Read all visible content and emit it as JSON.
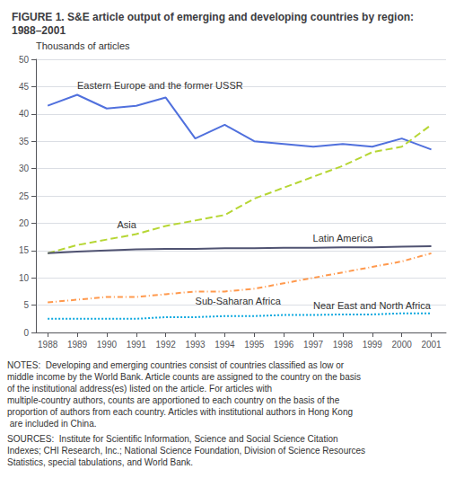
{
  "chart_data": {
    "type": "line",
    "title": "FIGURE 1. S&E article output of emerging and developing countries by region:  1988–2001",
    "ylabel": "Thousands of articles",
    "x": [
      1988,
      1989,
      1990,
      1991,
      1992,
      1993,
      1994,
      1995,
      1996,
      1997,
      1998,
      1999,
      2000,
      2001
    ],
    "series": [
      {
        "name": "Eastern Europe and the former USSR",
        "line_style": "solid",
        "values": [
          41.5,
          43.5,
          41.0,
          41.5,
          43.0,
          35.5,
          38.0,
          35.0,
          34.5,
          34.0,
          34.5,
          34.0,
          35.5,
          33.5
        ]
      },
      {
        "name": "Asia",
        "line_style": "dashed",
        "values": [
          14.5,
          16.0,
          17.0,
          18.0,
          19.5,
          20.5,
          21.5,
          24.5,
          26.5,
          28.5,
          30.5,
          33.0,
          34.0,
          38.0
        ]
      },
      {
        "name": "Latin America",
        "line_style": "solid",
        "values": [
          14.5,
          14.8,
          15.0,
          15.2,
          15.3,
          15.3,
          15.4,
          15.4,
          15.5,
          15.5,
          15.6,
          15.6,
          15.7,
          15.8
        ]
      },
      {
        "name": "Sub-Saharan Africa",
        "line_style": "dashdot",
        "values": [
          5.5,
          6.0,
          6.5,
          6.5,
          7.0,
          7.5,
          7.5,
          8.0,
          9.0,
          10.0,
          11.0,
          12.0,
          13.0,
          14.5
        ]
      },
      {
        "name": "Near East and North Africa",
        "line_style": "dotted",
        "values": [
          2.5,
          2.5,
          2.5,
          2.5,
          2.8,
          2.8,
          3.0,
          3.0,
          3.2,
          3.2,
          3.3,
          3.3,
          3.5,
          3.5
        ]
      }
    ],
    "xlim": [
      1987.6,
      2001.5
    ],
    "xticks": [
      1988,
      1989,
      1990,
      1991,
      1992,
      1993,
      1994,
      1995,
      1996,
      1997,
      1998,
      1999,
      2000,
      2001
    ],
    "ylim": [
      0,
      50
    ],
    "yticks": [
      0,
      5,
      10,
      15,
      20,
      25,
      30,
      35,
      40,
      45,
      50
    ],
    "grid": true,
    "notes": "NOTES:  Developing and emerging countries consist of countries classified as low or middle income by the World Bank. Article counts are assigned to the country on the basis of the institutional address(es) listed on the article. For articles with multiple-country authors, counts are apportioned to each country on the basis of the proportion of authors from each country. Articles with institutional authors in Hong Kong are included in China.",
    "sources": "SOURCES:  Institute for Scientific Information, Science and Social Science Citation Indexes; CHI Research, Inc.; National Science Foundation, Division of Science Resources Statistics, special tabulations, and World Bank."
  }
}
